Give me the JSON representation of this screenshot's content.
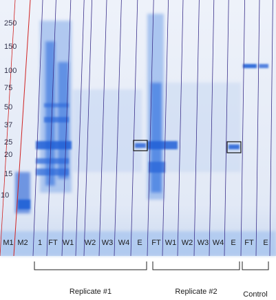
{
  "markers": [
    "250",
    "150",
    "100",
    "75",
    "50",
    "37",
    "25",
    "20",
    "15",
    "10"
  ],
  "lanes": [
    "M1",
    "M2",
    "1",
    "FT",
    "W1",
    "W2",
    "W3",
    "W4",
    "E",
    "FT",
    "W1",
    "W2",
    "W3",
    "W4",
    "E",
    "FT",
    "E"
  ],
  "groups": [
    "Replicate #1",
    "Replicate #2",
    "Control"
  ]
}
